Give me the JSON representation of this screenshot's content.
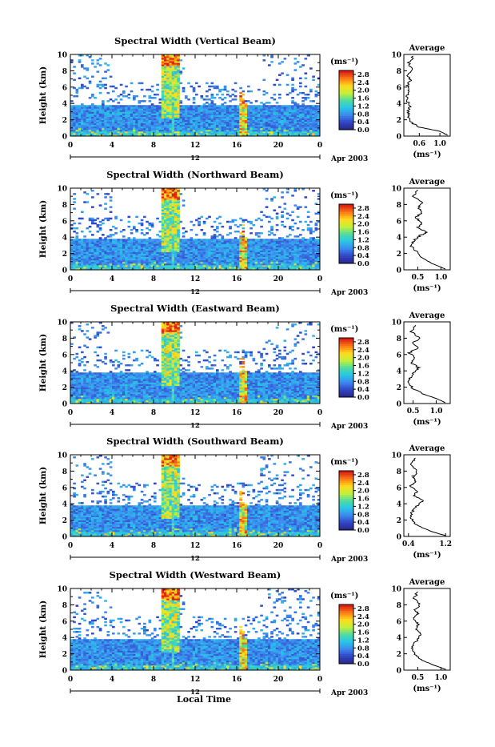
{
  "figure": {
    "xlabel": "Local Time",
    "date_label": "Apr 2003",
    "day_label": "12",
    "y_label": "Height (km)",
    "units": "(ms⁻¹)",
    "avg_title": "Average",
    "avg_xlabel": "(ms⁻¹)"
  },
  "chart_data": [
    {
      "type": "heatmap",
      "title": "Spectral Width (Vertical Beam)",
      "x_ticks": [
        "0",
        "4",
        "8",
        "12",
        "16",
        "20",
        "0"
      ],
      "y_ticks": [
        "0",
        "2",
        "4",
        "6",
        "8",
        "10"
      ],
      "xlim": [
        0,
        24
      ],
      "ylim": [
        0,
        10
      ],
      "colorbar": {
        "ticks": [
          "0.0",
          "0.4",
          "0.8",
          "1.2",
          "1.6",
          "2.0",
          "2.4",
          "2.8"
        ],
        "range": [
          0,
          3.0
        ]
      },
      "average": {
        "xlim": [
          0.3,
          1.2
        ],
        "x_ticks": [
          "0.6",
          "1.0"
        ],
        "profile": [
          [
            1.15,
            0.1
          ],
          [
            1.0,
            0.6
          ],
          [
            0.6,
            1.1
          ],
          [
            0.45,
            1.6
          ],
          [
            0.4,
            2.2
          ],
          [
            0.38,
            3.0
          ],
          [
            0.42,
            3.6
          ],
          [
            0.38,
            4.2
          ],
          [
            0.36,
            5.0
          ],
          [
            0.4,
            5.6
          ],
          [
            0.37,
            6.2
          ],
          [
            0.42,
            6.8
          ],
          [
            0.38,
            7.4
          ],
          [
            0.45,
            8.2
          ],
          [
            0.4,
            9.0
          ],
          [
            0.48,
            9.8
          ]
        ]
      }
    },
    {
      "type": "heatmap",
      "title": "Spectral Width (Northward Beam)",
      "x_ticks": [
        "0",
        "4",
        "8",
        "12",
        "16",
        "20",
        "0"
      ],
      "y_ticks": [
        "0",
        "2",
        "4",
        "6",
        "8",
        "10"
      ],
      "xlim": [
        0,
        24
      ],
      "ylim": [
        0,
        10
      ],
      "colorbar": {
        "ticks": [
          "0.0",
          "0.4",
          "0.8",
          "1.2",
          "1.6",
          "2.0",
          "2.4",
          "2.8"
        ],
        "range": [
          0,
          3.0
        ]
      },
      "average": {
        "xlim": [
          0.2,
          1.2
        ],
        "x_ticks": [
          "0.5",
          "1.0"
        ],
        "profile": [
          [
            1.1,
            0.1
          ],
          [
            0.8,
            0.8
          ],
          [
            0.55,
            1.6
          ],
          [
            0.45,
            2.4
          ],
          [
            0.35,
            3.0
          ],
          [
            0.42,
            3.6
          ],
          [
            0.55,
            4.2
          ],
          [
            0.7,
            4.6
          ],
          [
            0.5,
            5.2
          ],
          [
            0.6,
            5.8
          ],
          [
            0.45,
            6.4
          ],
          [
            0.6,
            7.0
          ],
          [
            0.5,
            7.6
          ],
          [
            0.62,
            8.2
          ],
          [
            0.4,
            9.0
          ],
          [
            0.5,
            9.8
          ]
        ]
      }
    },
    {
      "type": "heatmap",
      "title": "Spectral Width (Eastward Beam)",
      "x_ticks": [
        "0",
        "4",
        "8",
        "12",
        "16",
        "20",
        "0"
      ],
      "y_ticks": [
        "0",
        "2",
        "4",
        "6",
        "8",
        "10"
      ],
      "xlim": [
        0,
        24
      ],
      "ylim": [
        0,
        10
      ],
      "colorbar": {
        "ticks": [
          "0.0",
          "0.4",
          "0.8",
          "1.2",
          "1.6",
          "2.0",
          "2.4",
          "2.8"
        ],
        "range": [
          0,
          3.0
        ]
      },
      "average": {
        "xlim": [
          0.3,
          1.3
        ],
        "x_ticks": [
          "0.5",
          "1.0"
        ],
        "profile": [
          [
            1.2,
            0.1
          ],
          [
            1.0,
            0.6
          ],
          [
            0.7,
            1.2
          ],
          [
            0.5,
            1.8
          ],
          [
            0.4,
            2.6
          ],
          [
            0.45,
            3.2
          ],
          [
            0.52,
            3.8
          ],
          [
            0.62,
            4.4
          ],
          [
            0.45,
            5.0
          ],
          [
            0.55,
            5.6
          ],
          [
            0.42,
            6.2
          ],
          [
            0.6,
            6.8
          ],
          [
            0.48,
            7.4
          ],
          [
            0.65,
            8.0
          ],
          [
            0.45,
            8.8
          ],
          [
            0.55,
            9.6
          ]
        ]
      }
    },
    {
      "type": "heatmap",
      "title": "Spectral Width (Southward Beam)",
      "x_ticks": [
        "0",
        "4",
        "8",
        "12",
        "16",
        "20",
        "0"
      ],
      "y_ticks": [
        "0",
        "2",
        "4",
        "6",
        "8",
        "10"
      ],
      "xlim": [
        0,
        24
      ],
      "ylim": [
        0,
        10
      ],
      "colorbar": {
        "ticks": [
          "0.0",
          "0.4",
          "0.8",
          "1.2",
          "1.6",
          "2.0",
          "2.4",
          "2.8"
        ],
        "range": [
          0,
          3.0
        ]
      },
      "average": {
        "xlim": [
          0.3,
          1.3
        ],
        "x_ticks": [
          "0.4",
          "1.2"
        ],
        "profile": [
          [
            1.2,
            0.1
          ],
          [
            0.9,
            0.6
          ],
          [
            0.65,
            1.2
          ],
          [
            0.5,
            1.8
          ],
          [
            0.45,
            2.6
          ],
          [
            0.5,
            3.2
          ],
          [
            0.6,
            3.8
          ],
          [
            0.72,
            4.4
          ],
          [
            0.52,
            5.0
          ],
          [
            0.58,
            5.6
          ],
          [
            0.45,
            6.2
          ],
          [
            0.55,
            6.8
          ],
          [
            0.5,
            7.4
          ],
          [
            0.6,
            8.0
          ],
          [
            0.45,
            8.8
          ],
          [
            0.55,
            9.6
          ]
        ]
      }
    },
    {
      "type": "heatmap",
      "title": "Spectral Width (Westward Beam)",
      "x_ticks": [
        "0",
        "4",
        "8",
        "12",
        "16",
        "20",
        "0"
      ],
      "y_ticks": [
        "0",
        "2",
        "4",
        "6",
        "8",
        "10"
      ],
      "xlim": [
        0,
        24
      ],
      "ylim": [
        0,
        10
      ],
      "colorbar": {
        "ticks": [
          "0.0",
          "0.4",
          "0.8",
          "1.2",
          "1.6",
          "2.0",
          "2.4",
          "2.8"
        ],
        "range": [
          0,
          3.0
        ]
      },
      "average": {
        "xlim": [
          0.2,
          1.2
        ],
        "x_ticks": [
          "0.5",
          "1.0"
        ],
        "profile": [
          [
            1.1,
            0.1
          ],
          [
            0.85,
            0.6
          ],
          [
            0.6,
            1.2
          ],
          [
            0.45,
            1.8
          ],
          [
            0.38,
            2.6
          ],
          [
            0.42,
            3.2
          ],
          [
            0.5,
            3.8
          ],
          [
            0.58,
            4.4
          ],
          [
            0.45,
            5.0
          ],
          [
            0.52,
            5.6
          ],
          [
            0.4,
            6.2
          ],
          [
            0.5,
            6.8
          ],
          [
            0.45,
            7.4
          ],
          [
            0.55,
            8.0
          ],
          [
            0.42,
            8.8
          ],
          [
            0.5,
            9.6
          ]
        ]
      }
    }
  ]
}
